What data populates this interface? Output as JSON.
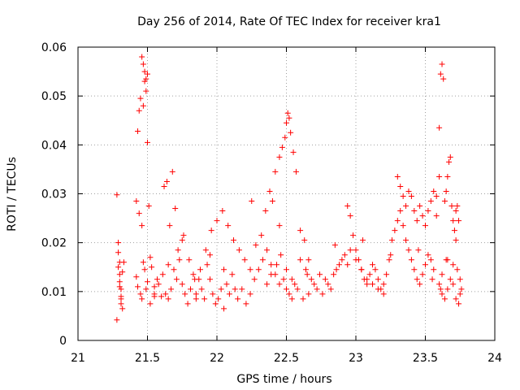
{
  "chart_data": {
    "type": "scatter",
    "title": "Day 256 of 2014, Rate Of TEC Index for receiver kra1",
    "xlabel": "GPS time / hours",
    "ylabel": "ROTI / TECUs",
    "xlim": [
      21,
      24
    ],
    "ylim": [
      0,
      0.06
    ],
    "x_ticks": [
      21,
      21.5,
      22,
      22.5,
      23,
      23.5,
      24
    ],
    "x_tick_labels": [
      "21",
      "21.5",
      "22",
      "22.5",
      "23",
      "23.5",
      "24"
    ],
    "y_ticks": [
      0,
      0.01,
      0.02,
      0.03,
      0.04,
      0.05,
      0.06
    ],
    "y_tick_labels": [
      "0",
      "0.01",
      "0.02",
      "0.03",
      "0.04",
      "0.05",
      "0.06"
    ],
    "grid": true,
    "marker": "+",
    "series": [
      {
        "name": "kra1",
        "color": "#ff0000",
        "x": [
          21.28,
          21.29,
          21.3,
          21.3,
          21.31,
          21.32,
          21.29,
          21.3,
          21.31,
          21.28,
          21.32,
          21.31,
          21.29,
          21.3,
          21.33,
          21.31,
          21.42,
          21.43,
          21.44,
          21.45,
          21.46,
          21.47,
          21.48,
          21.49,
          21.5,
          21.48,
          21.5,
          21.47,
          21.49,
          21.44,
          21.46,
          21.51,
          21.42,
          21.43,
          21.45,
          21.47,
          21.48,
          21.5,
          21.52,
          21.53,
          21.55,
          21.57,
          21.6,
          21.62,
          21.64,
          21.66,
          21.68,
          21.7,
          21.46,
          21.49,
          21.52,
          21.55,
          21.58,
          21.61,
          21.63,
          21.65,
          21.67,
          21.69,
          21.71,
          21.73,
          21.75,
          21.77,
          21.79,
          21.81,
          21.83,
          21.85,
          21.87,
          21.89,
          21.91,
          21.93,
          21.95,
          21.97,
          21.99,
          22.01,
          22.03,
          22.05,
          22.07,
          22.09,
          22.11,
          22.13,
          21.72,
          21.76,
          21.8,
          21.84,
          21.88,
          21.92,
          21.96,
          22.0,
          22.04,
          22.08,
          22.12,
          22.16,
          22.2,
          22.24,
          22.28,
          22.32,
          22.15,
          22.18,
          22.21,
          22.24,
          22.27,
          22.3,
          22.33,
          22.36,
          22.39,
          22.42,
          22.45,
          22.48,
          22.5,
          22.52,
          22.54,
          22.56,
          22.35,
          22.38,
          22.4,
          22.42,
          22.45,
          22.47,
          22.49,
          22.5,
          22.51,
          22.52,
          22.53,
          22.55,
          22.57,
          22.6,
          22.63,
          22.66,
          22.36,
          22.39,
          22.43,
          22.46,
          22.5,
          22.54,
          22.58,
          22.62,
          22.66,
          22.7,
          22.74,
          22.78,
          22.82,
          22.86,
          22.9,
          22.94,
          22.6,
          22.64,
          22.68,
          22.72,
          22.76,
          22.8,
          22.84,
          22.88,
          22.92,
          22.96,
          23.0,
          23.04,
          23.08,
          23.12,
          23.16,
          23.2,
          22.94,
          22.96,
          22.98,
          23.0,
          23.02,
          23.04,
          23.06,
          23.08,
          23.1,
          23.12,
          23.14,
          23.16,
          23.18,
          23.2,
          23.22,
          23.24,
          23.26,
          23.28,
          23.3,
          23.32,
          23.34,
          23.36,
          23.38,
          23.4,
          23.42,
          23.44,
          23.46,
          23.48,
          23.5,
          23.52,
          23.54,
          23.56,
          23.3,
          23.32,
          23.34,
          23.36,
          23.38,
          23.4,
          23.42,
          23.44,
          23.46,
          23.48,
          23.5,
          23.52,
          23.54,
          23.56,
          23.58,
          23.6,
          23.58,
          23.6,
          23.61,
          23.62,
          23.63,
          23.64,
          23.65,
          23.66,
          23.67,
          23.68,
          23.69,
          23.7,
          23.71,
          23.72,
          23.73,
          23.74,
          23.6,
          23.62,
          23.64,
          23.66,
          23.68,
          23.7,
          23.72,
          23.74,
          23.75,
          23.76,
          23.62,
          23.66,
          23.7,
          23.73,
          23.75,
          23.61,
          21.55,
          21.65,
          21.75,
          21.85,
          21.95,
          22.05,
          22.25,
          22.45,
          22.65,
          22.85,
          23.05,
          23.25,
          23.45,
          23.55,
          23.65,
          23.72
        ],
        "y": [
          0.0298,
          0.02,
          0.016,
          0.012,
          0.009,
          0.0065,
          0.018,
          0.0135,
          0.0105,
          0.0042,
          0.014,
          0.0085,
          0.015,
          0.011,
          0.016,
          0.0075,
          0.0285,
          0.0428,
          0.047,
          0.0495,
          0.058,
          0.0565,
          0.053,
          0.0535,
          0.0545,
          0.055,
          0.0405,
          0.048,
          0.051,
          0.026,
          0.0235,
          0.0275,
          0.013,
          0.011,
          0.0095,
          0.016,
          0.0145,
          0.012,
          0.017,
          0.015,
          0.011,
          0.0125,
          0.009,
          0.0315,
          0.0325,
          0.0235,
          0.0345,
          0.027,
          0.0085,
          0.0105,
          0.0075,
          0.009,
          0.0115,
          0.0135,
          0.0095,
          0.0085,
          0.0105,
          0.0145,
          0.0125,
          0.0165,
          0.0115,
          0.0095,
          0.0075,
          0.0105,
          0.0135,
          0.0095,
          0.0125,
          0.0105,
          0.0085,
          0.0155,
          0.0125,
          0.0095,
          0.0075,
          0.0085,
          0.0105,
          0.0065,
          0.0115,
          0.0095,
          0.0135,
          0.0105,
          0.0185,
          0.0215,
          0.0165,
          0.0125,
          0.0145,
          0.0185,
          0.0225,
          0.0245,
          0.0265,
          0.0235,
          0.0205,
          0.0185,
          0.0165,
          0.0145,
          0.0195,
          0.0215,
          0.0085,
          0.0105,
          0.0075,
          0.0095,
          0.0125,
          0.0145,
          0.0165,
          0.0185,
          0.0155,
          0.0135,
          0.0115,
          0.0125,
          0.0105,
          0.0095,
          0.0085,
          0.0115,
          0.0265,
          0.0305,
          0.0285,
          0.0345,
          0.0375,
          0.0395,
          0.0415,
          0.0445,
          0.0465,
          0.0455,
          0.0425,
          0.0385,
          0.0345,
          0.0225,
          0.0205,
          0.0165,
          0.0115,
          0.0135,
          0.0155,
          0.0175,
          0.0145,
          0.0125,
          0.0105,
          0.0085,
          0.0095,
          0.0115,
          0.0135,
          0.0125,
          0.0105,
          0.0145,
          0.0165,
          0.0155,
          0.0165,
          0.0145,
          0.0125,
          0.0105,
          0.0095,
          0.0115,
          0.0135,
          0.0155,
          0.0175,
          0.0185,
          0.0165,
          0.0145,
          0.0125,
          0.0115,
          0.0105,
          0.0095,
          0.0275,
          0.0255,
          0.0215,
          0.0185,
          0.0165,
          0.0145,
          0.0125,
          0.0115,
          0.0135,
          0.0155,
          0.0145,
          0.0125,
          0.0105,
          0.0115,
          0.0135,
          0.0165,
          0.0205,
          0.0225,
          0.0245,
          0.0265,
          0.0235,
          0.0205,
          0.0185,
          0.0165,
          0.0145,
          0.0125,
          0.0115,
          0.0135,
          0.0155,
          0.0175,
          0.0165,
          0.0145,
          0.0335,
          0.0315,
          0.0295,
          0.0275,
          0.0305,
          0.0295,
          0.0265,
          0.0245,
          0.0275,
          0.0255,
          0.0235,
          0.0265,
          0.0285,
          0.0305,
          0.0295,
          0.0335,
          0.0255,
          0.0435,
          0.0545,
          0.0565,
          0.0535,
          0.0285,
          0.0305,
          0.0335,
          0.0365,
          0.0375,
          0.0275,
          0.0245,
          0.0225,
          0.0265,
          0.0275,
          0.0245,
          0.0115,
          0.0095,
          0.0085,
          0.0105,
          0.0125,
          0.0115,
          0.0085,
          0.0075,
          0.0095,
          0.0105,
          0.0135,
          0.0165,
          0.0155,
          0.0145,
          0.0125,
          0.0105,
          0.0095,
          0.0155,
          0.0205,
          0.0085,
          0.0175,
          0.0145,
          0.0285,
          0.0235,
          0.0135,
          0.0195,
          0.0205,
          0.0175,
          0.0185,
          0.0125,
          0.0165,
          0.0205
        ]
      }
    ]
  }
}
